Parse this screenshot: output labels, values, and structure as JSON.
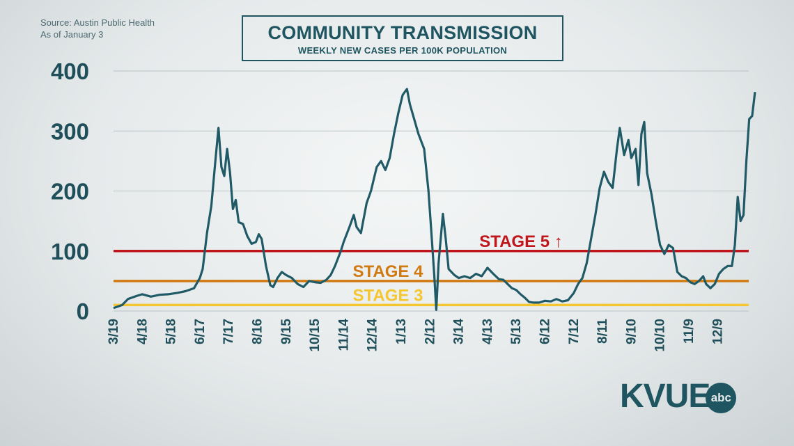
{
  "source_line1": "Source: Austin Public Health",
  "source_line2": "As of January 3",
  "logo": {
    "text": "KVUE",
    "badge": "abc"
  },
  "colors": {
    "line": "#1f5a66",
    "stage5": "#c0161b",
    "stage4": "#d27a12",
    "stage3": "#f5c630",
    "text": "#1f5560"
  },
  "chart_data": {
    "type": "line",
    "title": "COMMUNITY TRANSMISSION",
    "subtitle": "WEEKLY NEW CASES PER 100K POPULATION",
    "ylim": [
      0,
      400
    ],
    "yticks": [
      0,
      100,
      200,
      300,
      400
    ],
    "grid": true,
    "xlabels": [
      "3/19",
      "4/18",
      "5/18",
      "6/17",
      "7/17",
      "8/16",
      "9/15",
      "10/15",
      "11/14",
      "12/14",
      "1/13",
      "2/12",
      "3/14",
      "4/13",
      "5/13",
      "6/12",
      "7/12",
      "8/11",
      "9/10",
      "10/10",
      "11/9",
      "12/9"
    ],
    "thresholds": [
      {
        "label": "STAGE 5 ↑",
        "value": 100
      },
      {
        "label": "STAGE 4",
        "value": 50
      },
      {
        "label": "STAGE 3",
        "value": 10
      }
    ],
    "series": [
      {
        "points": [
          [
            0,
            5
          ],
          [
            0.3,
            10
          ],
          [
            0.5,
            20
          ],
          [
            0.8,
            25
          ],
          [
            1.0,
            28
          ],
          [
            1.3,
            24
          ],
          [
            1.6,
            27
          ],
          [
            1.9,
            28
          ],
          [
            2.2,
            30
          ],
          [
            2.5,
            33
          ],
          [
            2.8,
            38
          ],
          [
            3.0,
            55
          ],
          [
            3.1,
            70
          ],
          [
            3.25,
            130
          ],
          [
            3.4,
            175
          ],
          [
            3.55,
            255
          ],
          [
            3.65,
            305
          ],
          [
            3.75,
            240
          ],
          [
            3.85,
            225
          ],
          [
            3.95,
            270
          ],
          [
            4.05,
            230
          ],
          [
            4.15,
            170
          ],
          [
            4.25,
            185
          ],
          [
            4.35,
            148
          ],
          [
            4.5,
            145
          ],
          [
            4.65,
            125
          ],
          [
            4.8,
            112
          ],
          [
            4.95,
            115
          ],
          [
            5.05,
            128
          ],
          [
            5.15,
            120
          ],
          [
            5.3,
            75
          ],
          [
            5.45,
            43
          ],
          [
            5.55,
            40
          ],
          [
            5.7,
            55
          ],
          [
            5.85,
            65
          ],
          [
            6.0,
            60
          ],
          [
            6.2,
            55
          ],
          [
            6.4,
            45
          ],
          [
            6.6,
            40
          ],
          [
            6.8,
            50
          ],
          [
            7.0,
            48
          ],
          [
            7.2,
            47
          ],
          [
            7.4,
            52
          ],
          [
            7.55,
            60
          ],
          [
            7.7,
            75
          ],
          [
            7.9,
            100
          ],
          [
            8.0,
            115
          ],
          [
            8.2,
            140
          ],
          [
            8.35,
            160
          ],
          [
            8.45,
            140
          ],
          [
            8.6,
            130
          ],
          [
            8.8,
            180
          ],
          [
            8.95,
            200
          ],
          [
            9.15,
            240
          ],
          [
            9.3,
            250
          ],
          [
            9.45,
            235
          ],
          [
            9.6,
            255
          ],
          [
            9.75,
            295
          ],
          [
            9.9,
            330
          ],
          [
            10.05,
            360
          ],
          [
            10.2,
            370
          ],
          [
            10.3,
            345
          ],
          [
            10.45,
            320
          ],
          [
            10.6,
            295
          ],
          [
            10.8,
            270
          ],
          [
            10.95,
            200
          ],
          [
            11.05,
            130
          ],
          [
            11.15,
            60
          ],
          [
            11.22,
            2
          ],
          [
            11.3,
            80
          ],
          [
            11.45,
            162
          ],
          [
            11.55,
            120
          ],
          [
            11.65,
            70
          ],
          [
            11.85,
            60
          ],
          [
            12.0,
            55
          ],
          [
            12.2,
            58
          ],
          [
            12.4,
            55
          ],
          [
            12.6,
            62
          ],
          [
            12.8,
            58
          ],
          [
            13.0,
            72
          ],
          [
            13.2,
            62
          ],
          [
            13.4,
            53
          ],
          [
            13.55,
            52
          ],
          [
            13.7,
            45
          ],
          [
            13.85,
            38
          ],
          [
            14.0,
            35
          ],
          [
            14.15,
            28
          ],
          [
            14.3,
            22
          ],
          [
            14.45,
            15
          ],
          [
            14.6,
            14
          ],
          [
            14.8,
            14
          ],
          [
            15.0,
            17
          ],
          [
            15.2,
            16
          ],
          [
            15.4,
            20
          ],
          [
            15.6,
            16
          ],
          [
            15.8,
            18
          ],
          [
            16.0,
            30
          ],
          [
            16.15,
            45
          ],
          [
            16.3,
            55
          ],
          [
            16.45,
            80
          ],
          [
            16.6,
            120
          ],
          [
            16.75,
            160
          ],
          [
            16.9,
            205
          ],
          [
            17.05,
            232
          ],
          [
            17.2,
            215
          ],
          [
            17.35,
            205
          ],
          [
            17.5,
            270
          ],
          [
            17.6,
            305
          ],
          [
            17.75,
            260
          ],
          [
            17.9,
            285
          ],
          [
            18.0,
            255
          ],
          [
            18.15,
            270
          ],
          [
            18.25,
            210
          ],
          [
            18.35,
            295
          ],
          [
            18.45,
            315
          ],
          [
            18.55,
            230
          ],
          [
            18.7,
            195
          ],
          [
            18.85,
            150
          ],
          [
            19.0,
            110
          ],
          [
            19.15,
            95
          ],
          [
            19.3,
            110
          ],
          [
            19.45,
            105
          ],
          [
            19.6,
            65
          ],
          [
            19.75,
            58
          ],
          [
            19.9,
            55
          ],
          [
            20.05,
            48
          ],
          [
            20.2,
            45
          ],
          [
            20.35,
            50
          ],
          [
            20.5,
            58
          ],
          [
            20.6,
            45
          ],
          [
            20.75,
            38
          ],
          [
            20.9,
            45
          ],
          [
            21.05,
            62
          ],
          [
            21.2,
            70
          ],
          [
            21.35,
            75
          ],
          [
            21.5,
            75
          ],
          [
            21.6,
            110
          ],
          [
            21.7,
            190
          ],
          [
            21.8,
            150
          ],
          [
            21.9,
            160
          ],
          [
            22.0,
            250
          ],
          [
            22.1,
            320
          ],
          [
            22.2,
            325
          ],
          [
            22.3,
            365
          ]
        ]
      }
    ]
  }
}
